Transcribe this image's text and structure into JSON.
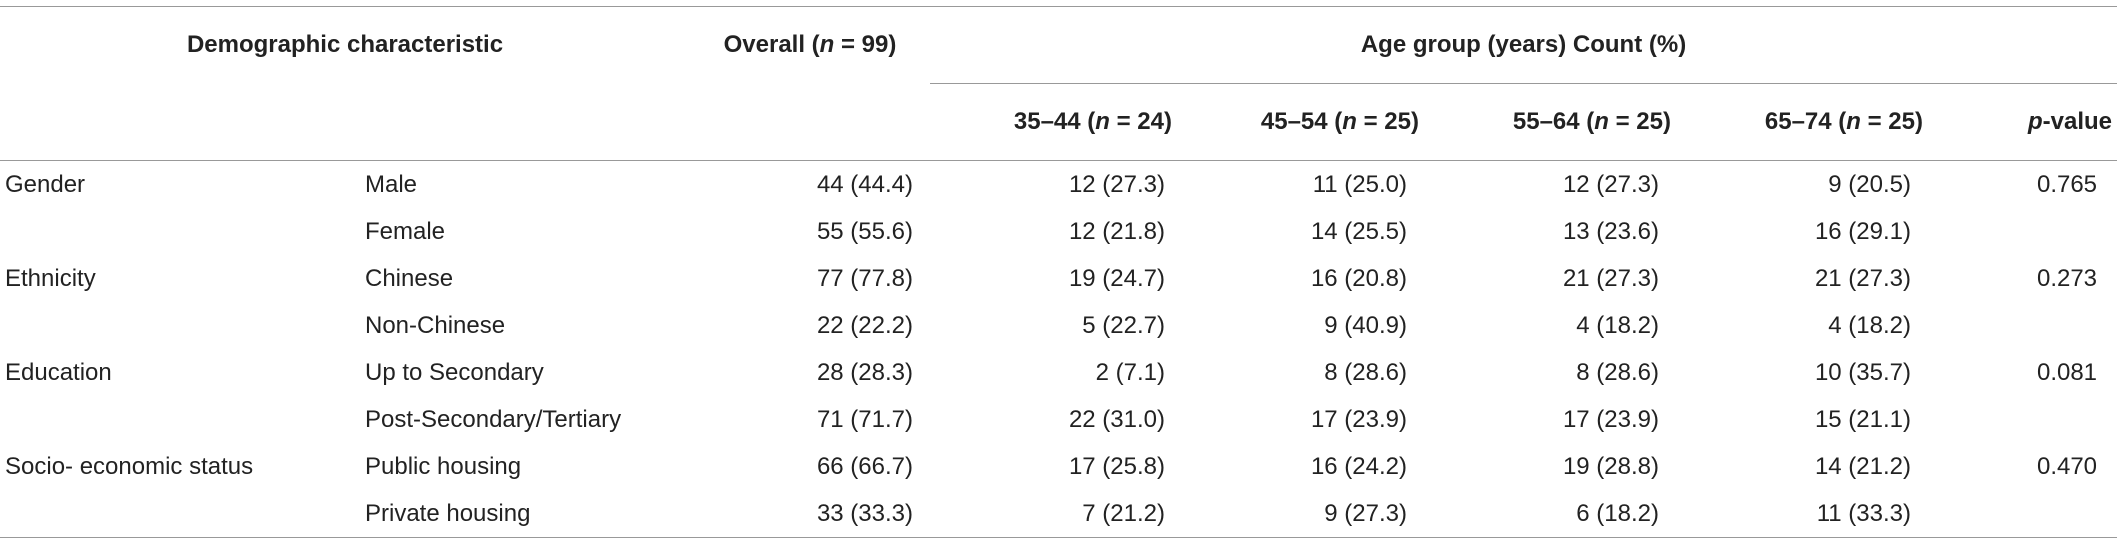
{
  "header": {
    "characteristic": "Demographic characteristic",
    "overall": [
      "Overall (",
      "n",
      " = 99)"
    ],
    "age_group": "Age group (years) Count (%)",
    "groups": [
      [
        "35–44 (",
        "n",
        " = 24)"
      ],
      [
        "45–54 (",
        "n",
        " = 25)"
      ],
      [
        "55–64 (",
        "n",
        " = 25)"
      ],
      [
        "65–74 (",
        "n",
        " = 25)"
      ]
    ],
    "p_value": [
      "",
      "p",
      "-value"
    ]
  },
  "rows": [
    {
      "category": "Gender",
      "level": "Male",
      "cells": [
        "44 (44.4)",
        "12 (27.3)",
        "11 (25.0)",
        "12 (27.3)",
        "9 (20.5)"
      ],
      "p": "0.765"
    },
    {
      "level": "Female",
      "cells": [
        "55 (55.6)",
        "12 (21.8)",
        "14 (25.5)",
        "13 (23.6)",
        "16 (29.1)"
      ]
    },
    {
      "category": "Ethnicity",
      "level": "Chinese",
      "cells": [
        "77 (77.8)",
        "19 (24.7)",
        "16 (20.8)",
        "21 (27.3)",
        "21 (27.3)"
      ],
      "p": "0.273"
    },
    {
      "level": "Non-Chinese",
      "cells": [
        "22 (22.2)",
        "5 (22.7)",
        "9 (40.9)",
        "4 (18.2)",
        "4 (18.2)"
      ]
    },
    {
      "category": "Education",
      "level": "Up to Secondary",
      "cells": [
        "28 (28.3)",
        "2 (7.1)",
        "8 (28.6)",
        "8 (28.6)",
        "10 (35.7)"
      ],
      "p": "0.081"
    },
    {
      "level": "Post-Secondary/Tertiary",
      "cells": [
        "71 (71.7)",
        "22 (31.0)",
        "17 (23.9)",
        "17 (23.9)",
        "15 (21.1)"
      ]
    },
    {
      "category": "Socio- economic status",
      "level": "Public housing",
      "cells": [
        "66 (66.7)",
        "17 (25.8)",
        "16 (24.2)",
        "19 (28.8)",
        "14 (21.2)"
      ],
      "p": "0.470"
    },
    {
      "level": "Private housing",
      "cells": [
        "33 (33.3)",
        "7 (21.2)",
        "9 (27.3)",
        "6 (18.2)",
        "11 (33.3)"
      ]
    }
  ]
}
